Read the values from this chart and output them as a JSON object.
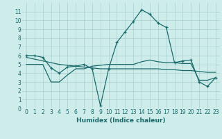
{
  "xlabel": "Humidex (Indice chaleur)",
  "bg_color": "#ceecea",
  "line_color": "#1a6b6b",
  "grid_color": "#aacfcf",
  "line1_x": [
    0,
    1,
    2,
    3,
    4,
    5,
    6,
    7,
    8,
    9,
    10,
    11,
    12,
    13,
    14,
    15,
    16,
    17,
    18,
    19,
    20,
    21,
    22,
    23
  ],
  "line1_y": [
    6.0,
    6.0,
    5.8,
    4.6,
    4.0,
    4.7,
    4.8,
    5.0,
    4.5,
    0.3,
    4.5,
    7.5,
    8.7,
    9.9,
    11.2,
    10.7,
    9.7,
    9.2,
    5.2,
    5.4,
    5.5,
    3.0,
    2.5,
    3.5
  ],
  "line2_x": [
    0,
    1,
    2,
    3,
    4,
    5,
    6,
    7,
    8,
    9,
    10,
    11,
    12,
    13,
    14,
    15,
    16,
    17,
    18,
    19,
    20,
    21,
    22,
    23
  ],
  "line2_y": [
    5.8,
    5.6,
    5.4,
    5.2,
    5.0,
    4.9,
    4.8,
    4.7,
    4.6,
    4.5,
    4.5,
    4.5,
    4.5,
    4.5,
    4.5,
    4.5,
    4.5,
    4.4,
    4.4,
    4.3,
    4.3,
    4.2,
    4.1,
    4.1
  ],
  "line3_x": [
    0,
    1,
    2,
    3,
    4,
    5,
    6,
    7,
    8,
    9,
    10,
    11,
    12,
    13,
    14,
    15,
    16,
    17,
    18,
    19,
    20,
    21,
    22,
    23
  ],
  "line3_y": [
    5.0,
    5.0,
    5.0,
    3.0,
    3.0,
    3.8,
    4.5,
    4.5,
    4.8,
    4.9,
    5.0,
    5.0,
    5.0,
    5.0,
    5.3,
    5.5,
    5.3,
    5.2,
    5.2,
    5.1,
    5.1,
    3.2,
    3.2,
    3.5
  ],
  "ylim": [
    0,
    12
  ],
  "xlim": [
    -0.5,
    23.5
  ],
  "yticks": [
    0,
    1,
    2,
    3,
    4,
    5,
    6,
    7,
    8,
    9,
    10,
    11
  ],
  "xticks": [
    0,
    1,
    2,
    3,
    4,
    5,
    6,
    7,
    8,
    9,
    10,
    11,
    12,
    13,
    14,
    15,
    16,
    17,
    18,
    19,
    20,
    21,
    22,
    23
  ],
  "xlabel_fontsize": 6.5,
  "tick_fontsize": 5.5
}
